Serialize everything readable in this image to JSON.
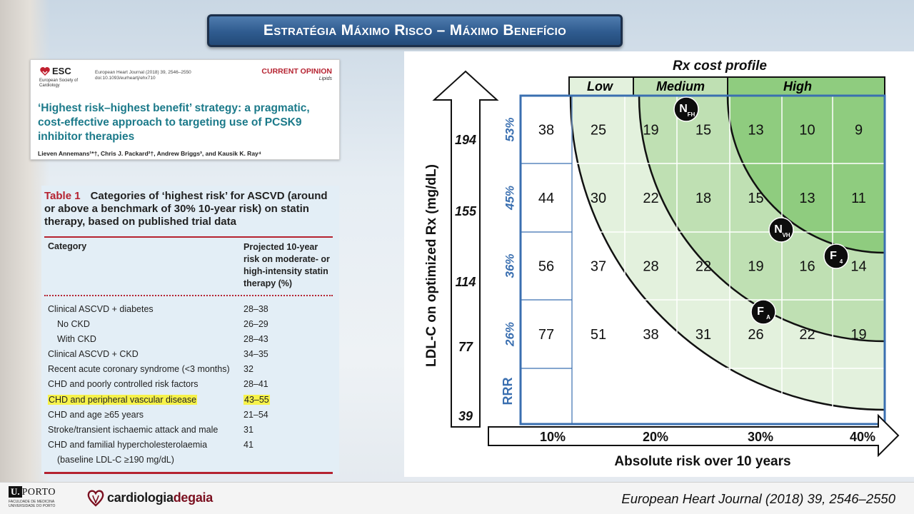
{
  "slide": {
    "title": "Estratégia Máximo Risco – Máximo Benefício"
  },
  "paper": {
    "society": "ESC",
    "society_sub": "European Society of Cardiology",
    "journal_ref": "European Heart Journal (2018) 39, 2546–2550 doi:10.1093/eurheartj/ehx710",
    "section": "CURRENT OPINION",
    "subsection": "Lipids",
    "title": "‘Highest risk–highest benefit’ strategy: a pragmatic, cost-effective approach to targeting use of PCSK9 inhibitor therapies",
    "authors": "Lieven Annemans¹*†, Chris J. Packard²†, Andrew Briggs³, and Kausik K. Ray⁴"
  },
  "table": {
    "label": "Table 1",
    "caption": "Categories of ‘highest risk’ for ASCVD (around or above a benchmark of 30% 10-year risk) on statin therapy, based on published trial data",
    "col_category": "Category",
    "col_risk": "Projected 10-year risk on moderate- or high-intensity statin therapy (%)",
    "rows": [
      {
        "category": "Clinical ASCVD + diabetes",
        "value": "28–38"
      },
      {
        "category": "No CKD",
        "value": "26–29"
      },
      {
        "category": "With CKD",
        "value": "28–43"
      },
      {
        "category": "Clinical ASCVD + CKD",
        "value": "34–35"
      },
      {
        "category": "Recent acute coronary syndrome (<3 months)",
        "value": "32"
      },
      {
        "category": "CHD and poorly controlled risk factors",
        "value": "28–41"
      },
      {
        "category": "CHD and peripheral vascular disease",
        "value": "43–55"
      },
      {
        "category": "CHD and age ≥65 years",
        "value": "21–54"
      },
      {
        "category": "Stroke/transient ischaemic attack and male",
        "value": "31"
      },
      {
        "category": "CHD and familial hypercholesterolaemia",
        "value": "41"
      },
      {
        "category": "(baseline LDL-C ≥190 mg/dL)",
        "value": ""
      }
    ]
  },
  "chart_data": {
    "type": "table",
    "title": "Rx cost profile",
    "cost_levels": [
      "Low",
      "Medium",
      "High"
    ],
    "ylabel": "LDL-C on optimized Rx (mg/dL)",
    "y_ticks": [
      "194",
      "155",
      "114",
      "77",
      "39"
    ],
    "rrr_label": "RRR",
    "rrr_values": [
      "53%",
      "45%",
      "36%",
      "26%"
    ],
    "xlabel": "Absolute risk over 10 years",
    "x_ticks": [
      "10%",
      "20%",
      "30%",
      "40%"
    ],
    "cells": [
      [
        "38",
        "25",
        "19",
        "15",
        "13",
        "10",
        "9"
      ],
      [
        "44",
        "30",
        "22",
        "18",
        "15",
        "13",
        "11"
      ],
      [
        "56",
        "37",
        "28",
        "22",
        "19",
        "16",
        "14"
      ],
      [
        "77",
        "51",
        "38",
        "31",
        "26",
        "22",
        "19"
      ]
    ],
    "markers": [
      {
        "label": "N",
        "sub": "FH"
      },
      {
        "label": "N",
        "sub": "VH"
      },
      {
        "label": "F",
        "sub": "4"
      },
      {
        "label": "F",
        "sub": "A"
      }
    ],
    "colors": {
      "low": "#e3f1dd",
      "medium": "#bfe0b3",
      "high": "#8fcc7f",
      "grid": "#3a6fb0"
    }
  },
  "footer": {
    "uni_mark": "U.",
    "uni_name": "PORTO",
    "uni_sub": "FACULDADE DE MEDICINA UNIVERSIDADE DO PORTO",
    "partner_a": "cardiologia",
    "partner_b": "degaia",
    "citation": "European Heart Journal (2018) 39, 2546–2550"
  }
}
